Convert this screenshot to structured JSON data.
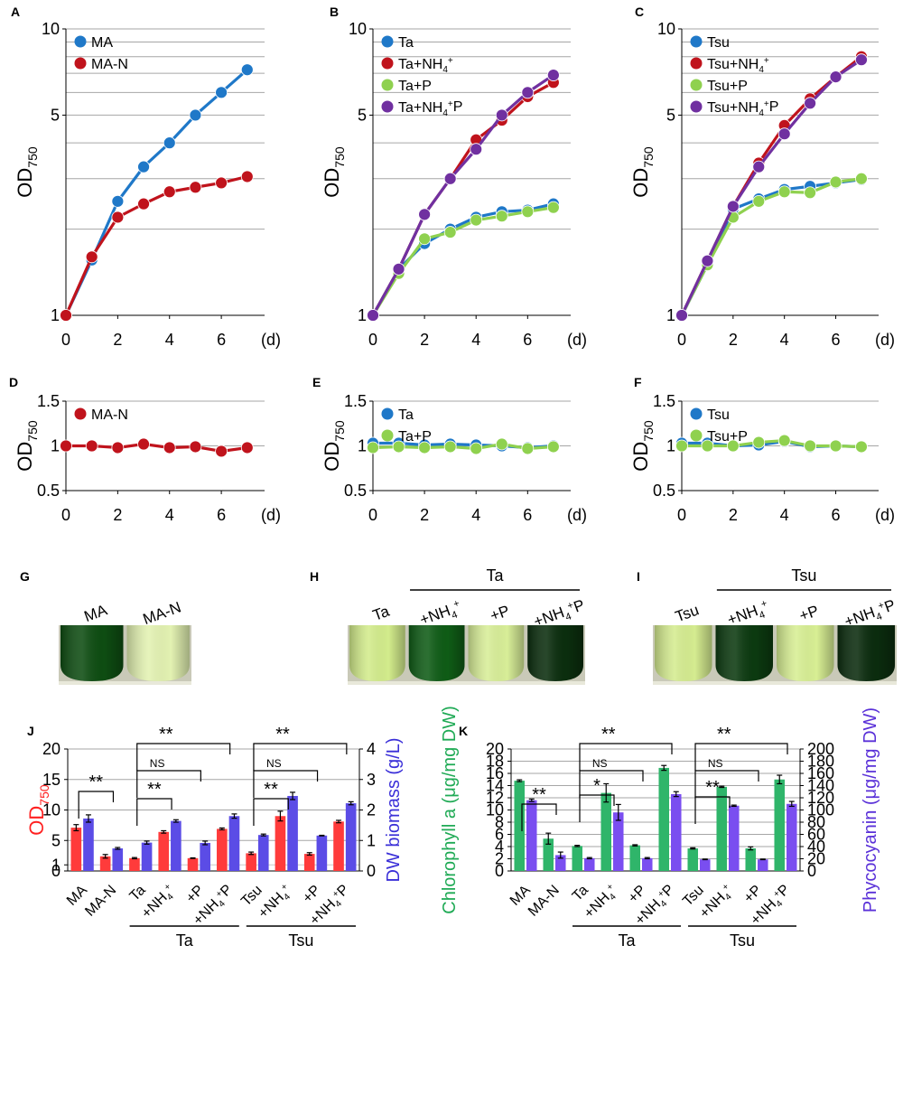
{
  "colors": {
    "blue": "#1f78c8",
    "red": "#c0131c",
    "green": "#8fd14f",
    "purple": "#7030a0",
    "bar_red": "#ff3b3b",
    "bar_blue": "#5b4ce6",
    "bar_green": "#2fb56a",
    "bar_violet": "#7a4ef0",
    "grid": "#a6a6a6"
  },
  "panels": {
    "A": "A",
    "B": "B",
    "C": "C",
    "D": "D",
    "E": "E",
    "F": "F",
    "G": "G",
    "H": "H",
    "I": "I",
    "J": "J",
    "K": "K"
  },
  "chart_data": [
    {
      "id": "A",
      "type": "line",
      "scale": "log",
      "ylabel_main": "OD",
      "ylabel_sub": "750",
      "xunit": "(d)",
      "xticks": [
        "0",
        "2",
        "4",
        "6"
      ],
      "yticks": [
        "1",
        "5",
        "10"
      ],
      "x": [
        0,
        1,
        2,
        3,
        4,
        5,
        6,
        7
      ],
      "ylim": [
        1,
        10
      ],
      "series": [
        {
          "name": "MA",
          "color": "blue",
          "values": [
            1,
            1.56,
            2.5,
            3.3,
            4.0,
            5.0,
            6.0,
            7.2
          ]
        },
        {
          "name": "MA-N",
          "color": "red",
          "values": [
            1,
            1.6,
            2.2,
            2.45,
            2.7,
            2.8,
            2.9,
            3.05
          ]
        }
      ]
    },
    {
      "id": "B",
      "type": "line",
      "scale": "log",
      "ylabel_main": "OD",
      "ylabel_sub": "750",
      "xunit": "(d)",
      "xticks": [
        "0",
        "2",
        "4",
        "6"
      ],
      "yticks": [
        "1",
        "5",
        "10"
      ],
      "x": [
        0,
        1,
        2,
        3,
        4,
        5,
        6,
        7
      ],
      "ylim": [
        1,
        10
      ],
      "series": [
        {
          "name": "Ta",
          "color": "blue",
          "values": [
            1,
            1.45,
            1.78,
            2.0,
            2.2,
            2.3,
            2.33,
            2.45
          ]
        },
        {
          "name": "Ta+NH4+",
          "color": "red",
          "values": [
            1,
            1.45,
            2.25,
            3.0,
            4.1,
            4.8,
            5.8,
            6.5
          ]
        },
        {
          "name": "Ta+P",
          "color": "green",
          "values": [
            1,
            1.4,
            1.85,
            1.95,
            2.15,
            2.22,
            2.3,
            2.38
          ]
        },
        {
          "name": "Ta+NH4+P",
          "color": "purple",
          "values": [
            1,
            1.45,
            2.25,
            3.0,
            3.8,
            5.0,
            6.0,
            6.9
          ]
        }
      ]
    },
    {
      "id": "C",
      "type": "line",
      "scale": "log",
      "ylabel_main": "OD",
      "ylabel_sub": "750",
      "xunit": "(d)",
      "xticks": [
        "0",
        "2",
        "4",
        "6"
      ],
      "yticks": [
        "1",
        "5",
        "10"
      ],
      "x": [
        0,
        1,
        2,
        3,
        4,
        5,
        6,
        7
      ],
      "ylim": [
        1,
        10
      ],
      "series": [
        {
          "name": "Tsu",
          "color": "blue",
          "values": [
            1,
            1.5,
            2.35,
            2.55,
            2.75,
            2.82,
            2.9,
            2.98
          ]
        },
        {
          "name": "Tsu+NH4+",
          "color": "red",
          "values": [
            1,
            1.55,
            2.4,
            3.4,
            4.6,
            5.7,
            6.8,
            8.0
          ]
        },
        {
          "name": "Tsu+P",
          "color": "green",
          "values": [
            1,
            1.5,
            2.2,
            2.5,
            2.7,
            2.68,
            2.92,
            3.0
          ]
        },
        {
          "name": "Tsu+NH4+P",
          "color": "purple",
          "values": [
            1,
            1.55,
            2.4,
            3.3,
            4.3,
            5.5,
            6.8,
            7.8
          ]
        }
      ]
    },
    {
      "id": "D",
      "type": "line",
      "scale": "linear",
      "ylabel_main": "OD",
      "ylabel_sub": "750",
      "xunit": "(d)",
      "xticks": [
        "0",
        "2",
        "4",
        "6"
      ],
      "yticks": [
        "0.5",
        "1",
        "1.5"
      ],
      "x": [
        0,
        1,
        2,
        3,
        4,
        5,
        6,
        7
      ],
      "ylim": [
        0.5,
        1.5
      ],
      "series": [
        {
          "name": "MA-N",
          "color": "red",
          "values": [
            1.0,
            1.0,
            0.98,
            1.02,
            0.98,
            0.99,
            0.94,
            0.98
          ]
        }
      ]
    },
    {
      "id": "E",
      "type": "line",
      "scale": "linear",
      "ylabel_main": "OD",
      "ylabel_sub": "750",
      "xunit": "(d)",
      "xticks": [
        "0",
        "2",
        "4",
        "6"
      ],
      "yticks": [
        "0.5",
        "1",
        "1.5"
      ],
      "x": [
        0,
        1,
        2,
        3,
        4,
        5,
        6,
        7
      ],
      "ylim": [
        0.5,
        1.5
      ],
      "series": [
        {
          "name": "Ta",
          "color": "blue",
          "values": [
            1.03,
            1.03,
            1.01,
            1.02,
            1.01,
            1.0,
            0.98,
            1.0
          ]
        },
        {
          "name": "Ta+P",
          "color": "green",
          "values": [
            0.98,
            0.99,
            0.98,
            0.99,
            0.97,
            1.02,
            0.97,
            0.99
          ]
        }
      ]
    },
    {
      "id": "F",
      "type": "line",
      "scale": "linear",
      "ylabel_main": "OD",
      "ylabel_sub": "750",
      "xunit": "(d)",
      "xticks": [
        "0",
        "2",
        "4",
        "6"
      ],
      "yticks": [
        "0.5",
        "1",
        "1.5"
      ],
      "x": [
        0,
        1,
        2,
        3,
        4,
        5,
        6,
        7
      ],
      "ylim": [
        0.5,
        1.5
      ],
      "series": [
        {
          "name": "Tsu",
          "color": "blue",
          "values": [
            1.03,
            1.03,
            1.0,
            1.01,
            1.05,
            0.99,
            1.0,
            0.99
          ]
        },
        {
          "name": "Tsu+P",
          "color": "green",
          "values": [
            1.0,
            1.0,
            1.0,
            1.04,
            1.06,
            1.0,
            1.0,
            0.99
          ]
        }
      ]
    },
    {
      "id": "J",
      "type": "bar",
      "ylabel_left_main": "OD",
      "ylabel_left_sub": "750",
      "ylabel_right": "DW biomass (g/L)",
      "left_ticks": [
        "0",
        "1",
        "5",
        "10",
        "15",
        "20"
      ],
      "right_ticks": [
        "0",
        "1",
        "2",
        "3",
        "4"
      ],
      "left_lim": [
        0,
        20
      ],
      "right_lim": [
        0,
        4
      ],
      "categories": [
        "MA",
        "MA-N",
        "Ta",
        "+NH4+",
        "+P",
        "+NH4+P",
        "Tsu",
        "+NH4+",
        "+P",
        "+NH4+P"
      ],
      "group_labels": [
        "Ta",
        "Tsu"
      ],
      "series": [
        {
          "name": "OD750",
          "axis": "left",
          "color": "bar_red",
          "values": [
            7.1,
            2.4,
            2.1,
            6.4,
            2.1,
            6.9,
            2.9,
            9.0,
            2.8,
            8.1
          ],
          "errors": [
            0.5,
            0.3,
            0.1,
            0.2,
            0.05,
            0.15,
            0.2,
            0.8,
            0.2,
            0.2
          ]
        },
        {
          "name": "DW biomass",
          "axis": "right",
          "color": "bar_blue",
          "values": [
            1.72,
            0.74,
            0.93,
            1.64,
            0.92,
            1.8,
            1.18,
            2.46,
            1.16,
            2.22
          ],
          "errors": [
            0.12,
            0.03,
            0.05,
            0.04,
            0.06,
            0.07,
            0.03,
            0.12,
            0.01,
            0.05
          ]
        }
      ],
      "significance": [
        {
          "from": 0,
          "to": 1,
          "label": "**"
        },
        {
          "from": 2,
          "to": 3,
          "label": "**"
        },
        {
          "from": 2,
          "to": 4,
          "label": "NS"
        },
        {
          "from": 2,
          "to": 5,
          "label": "**"
        },
        {
          "from": 6,
          "to": 7,
          "label": "**"
        },
        {
          "from": 6,
          "to": 8,
          "label": "NS"
        },
        {
          "from": 6,
          "to": 9,
          "label": "**"
        }
      ]
    },
    {
      "id": "K",
      "type": "bar",
      "ylabel_left": "Chlorophyll a (μg/mg DW)",
      "ylabel_right": "Phycocyanin (μg/mg DW)",
      "left_ticks": [
        "0",
        "2",
        "4",
        "6",
        "8",
        "10",
        "12",
        "14",
        "16",
        "18",
        "20"
      ],
      "right_ticks": [
        "0",
        "20",
        "40",
        "60",
        "80",
        "100",
        "120",
        "140",
        "160",
        "180",
        "200"
      ],
      "left_lim": [
        0,
        20
      ],
      "right_lim": [
        0,
        200
      ],
      "categories": [
        "MA",
        "MA-N",
        "Ta",
        "+NH4+",
        "+P",
        "+NH4+P",
        "Tsu",
        "+NH4+",
        "+P",
        "+NH4+P"
      ],
      "group_labels": [
        "Ta",
        "Tsu"
      ],
      "series": [
        {
          "name": "Chlorophyll a",
          "axis": "left",
          "color": "bar_green",
          "values": [
            14.8,
            5.3,
            4.1,
            12.8,
            4.2,
            16.9,
            3.7,
            13.8,
            3.7,
            15.0
          ],
          "errors": [
            0.15,
            0.9,
            0.1,
            1.5,
            0.1,
            0.4,
            0.1,
            0.1,
            0.25,
            0.7
          ]
        },
        {
          "name": "Phycocyanin",
          "axis": "right",
          "color": "bar_violet",
          "values": [
            116,
            26,
            21,
            96,
            21,
            126,
            19,
            107,
            19,
            110
          ],
          "errors": [
            2,
            5,
            1,
            13,
            1,
            4,
            0.5,
            1,
            0.5,
            4
          ]
        }
      ],
      "significance": [
        {
          "from": 0,
          "to": 1,
          "label": "**"
        },
        {
          "from": 2,
          "to": 3,
          "label": "*"
        },
        {
          "from": 2,
          "to": 4,
          "label": "NS"
        },
        {
          "from": 2,
          "to": 5,
          "label": "**"
        },
        {
          "from": 6,
          "to": 7,
          "label": "**"
        },
        {
          "from": 6,
          "to": 8,
          "label": "NS"
        },
        {
          "from": 6,
          "to": 9,
          "label": "**"
        }
      ]
    }
  ],
  "photos": {
    "G": {
      "tube_labels": [
        "MA",
        "MA-N"
      ],
      "tube_colors": [
        "#0e4d12",
        "#e3f2b2"
      ]
    },
    "H": {
      "group_label": "Ta",
      "tube_labels": [
        "Ta",
        "+NH4+",
        "+P",
        "+NH4+P"
      ],
      "tube_colors": [
        "#d3ec8c",
        "#0f5c16",
        "#d8ee98",
        "#0b2e0e"
      ]
    },
    "I": {
      "group_label": "Tsu",
      "tube_labels": [
        "Tsu",
        "+NH4+",
        "+P",
        "+NH4+P"
      ],
      "tube_colors": [
        "#d5ec90",
        "#0c3a10",
        "#d8ef94",
        "#0b2c0e"
      ]
    }
  }
}
